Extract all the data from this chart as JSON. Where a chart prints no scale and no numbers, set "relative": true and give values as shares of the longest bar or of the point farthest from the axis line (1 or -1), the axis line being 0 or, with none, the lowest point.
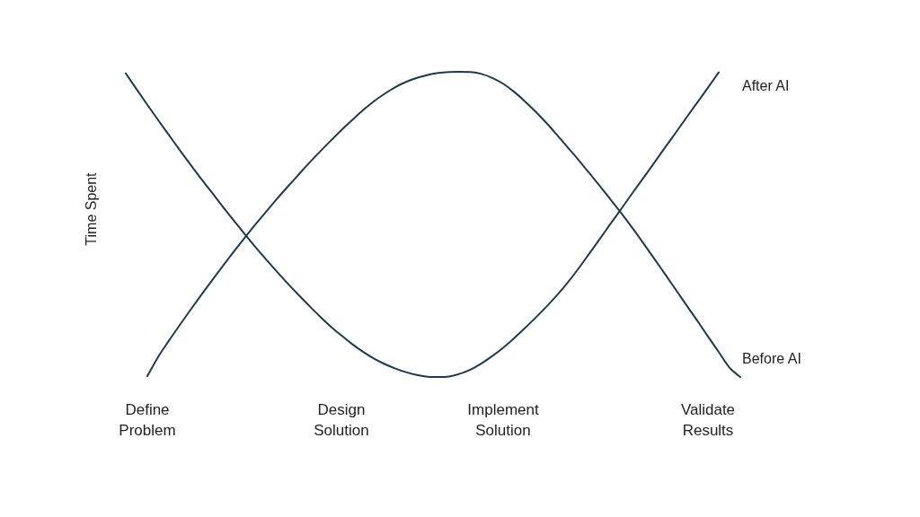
{
  "chart_data": {
    "type": "line",
    "ylabel": "Time Spent",
    "relative": true,
    "categories": [
      null,
      null,
      "Define Problem",
      null,
      null,
      null,
      null,
      null,
      null,
      null,
      null,
      null,
      null,
      null,
      null,
      null,
      null,
      null,
      null,
      null,
      "Design Solution",
      null,
      null,
      null,
      null,
      null,
      null,
      null,
      null,
      null,
      null,
      null,
      null,
      null,
      null,
      "Implement Solution",
      null,
      null,
      null,
      null,
      null,
      null,
      null,
      null,
      null,
      null,
      null,
      null,
      null,
      null,
      null,
      null,
      null,
      null,
      "Validate Results",
      null,
      null,
      null
    ],
    "series": [
      {
        "name": "After AI",
        "color": "#1f3a4b",
        "values": [
          0.995,
          0.943,
          0.892,
          0.842,
          0.793,
          0.744,
          0.696,
          0.649,
          0.604,
          0.558,
          0.514,
          0.47,
          0.427,
          0.386,
          0.346,
          0.307,
          0.27,
          0.234,
          0.199,
          0.166,
          0.136,
          0.108,
          0.083,
          0.061,
          0.043,
          0.028,
          0.016,
          0.007,
          0.001,
          0.0,
          0.002,
          0.011,
          0.025,
          0.045,
          0.069,
          0.096,
          0.127,
          0.16,
          0.194,
          0.23,
          0.268,
          0.31,
          0.356,
          0.405,
          0.454,
          0.504,
          0.553,
          0.603,
          0.652,
          0.701,
          0.751,
          0.8,
          0.85,
          0.899,
          0.948,
          0.998,
          null,
          null
        ]
      },
      {
        "name": "Before AI",
        "color": "#1f3a4b",
        "values": [
          null,
          null,
          0.003,
          0.066,
          0.119,
          0.17,
          0.22,
          0.269,
          0.317,
          0.364,
          0.41,
          0.455,
          0.499,
          0.541,
          0.583,
          0.623,
          0.662,
          0.701,
          0.738,
          0.774,
          0.809,
          0.842,
          0.874,
          0.903,
          0.928,
          0.95,
          0.967,
          0.98,
          0.99,
          0.996,
          0.999,
          1.0,
          0.999,
          0.993,
          0.98,
          0.961,
          0.935,
          0.904,
          0.87,
          0.833,
          0.793,
          0.752,
          0.711,
          0.668,
          0.625,
          0.58,
          0.535,
          0.488,
          0.439,
          0.389,
          0.338,
          0.287,
          0.236,
          0.185,
          0.133,
          0.082,
          0.031,
          0.0
        ]
      }
    ]
  }
}
